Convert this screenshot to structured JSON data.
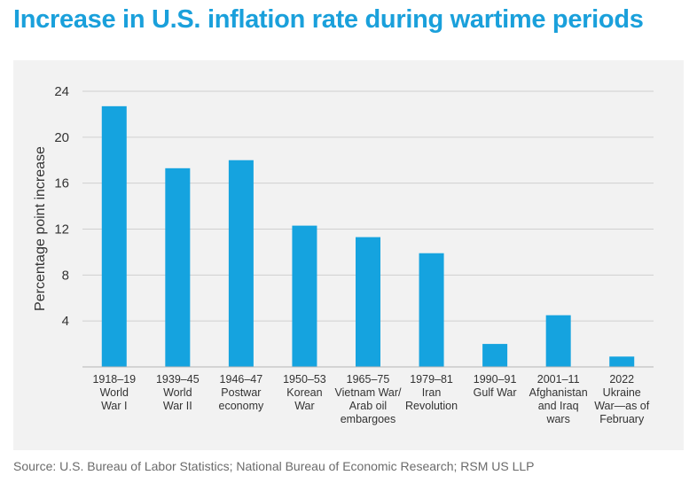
{
  "title": "Increase in U.S. inflation rate during wartime periods",
  "source": "Source: U.S. Bureau of Labor Statistics; National Bureau of Economic Research; RSM US LLP",
  "colors": {
    "bar": "#15a3df",
    "title": "#1aa0db",
    "panel": "#f2f2f2",
    "grid": "#d0d0d0"
  },
  "chart_data": {
    "type": "bar",
    "title": "Increase in U.S. inflation rate during wartime periods",
    "ylabel": "Percentage point increase",
    "xlabel": "",
    "ylim": [
      0,
      24
    ],
    "yticks": [
      "4",
      "8",
      "12",
      "16",
      "20",
      "24"
    ],
    "grid": true,
    "categories": [
      [
        "1918–19",
        "World",
        "War I"
      ],
      [
        "1939–45",
        "World",
        "War II"
      ],
      [
        "1946–47",
        "Postwar",
        "economy"
      ],
      [
        "1950–53",
        "Korean",
        "War"
      ],
      [
        "1965–75",
        "Vietnam War/",
        "Arab oil",
        "embargoes"
      ],
      [
        "1979–81",
        "Iran",
        "Revolution"
      ],
      [
        "1990–91",
        "Gulf War"
      ],
      [
        "2001–11",
        "Afghanistan",
        "and Iraq",
        "wars"
      ],
      [
        "2022",
        "Ukraine",
        "War—as of",
        "February"
      ]
    ],
    "values": [
      22.7,
      17.3,
      18.0,
      12.3,
      11.3,
      9.9,
      2.0,
      4.5,
      0.9
    ]
  }
}
